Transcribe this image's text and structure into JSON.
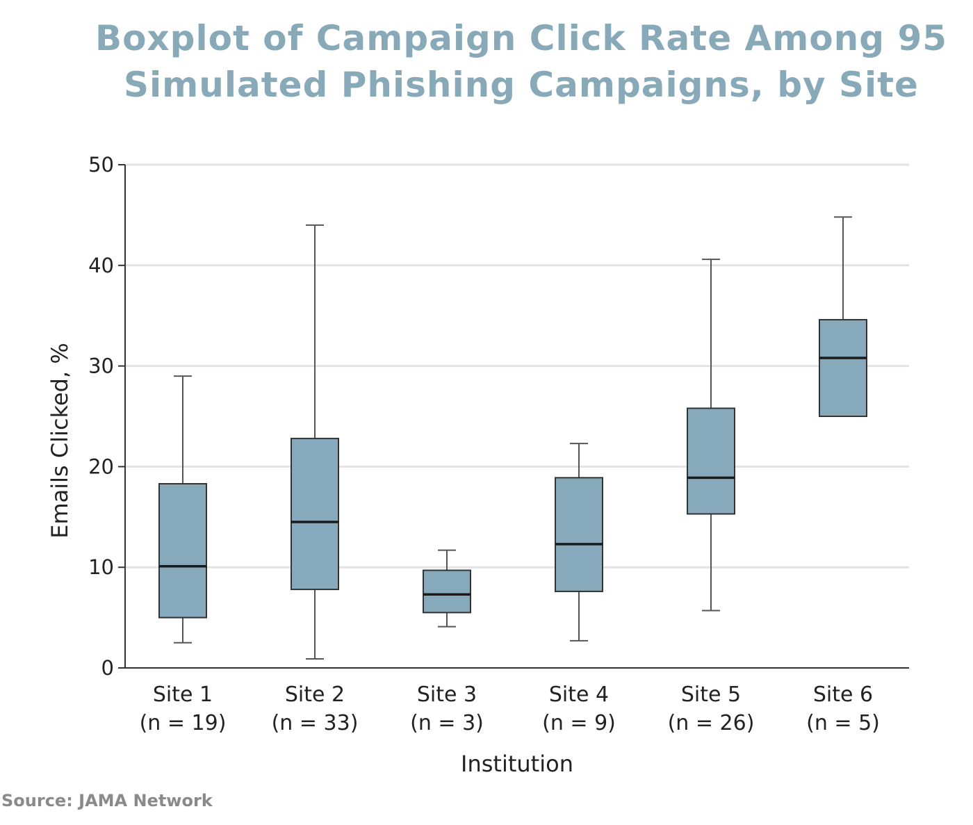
{
  "colors": {
    "title": "#88a9b8",
    "box_fill": "#86aabb",
    "box_stroke": "#333333",
    "grid": "#e3e3e3",
    "source": "#8a8a8a"
  },
  "chart_data": {
    "type": "boxplot",
    "title_lines": [
      "Boxplot of Campaign Click Rate Among 95",
      "Simulated Phishing Campaigns, by Site"
    ],
    "xlabel": "Institution",
    "ylabel": "Emails Clicked, %",
    "ylim": [
      0,
      50
    ],
    "yticks": [
      0,
      10,
      20,
      30,
      40,
      50
    ],
    "grid": true,
    "categories": [
      {
        "name": "Site 1",
        "n_label": "(n = 19)",
        "min": 2.5,
        "q1": 5.0,
        "median": 10.1,
        "q3": 18.3,
        "max": 29.0
      },
      {
        "name": "Site 2",
        "n_label": "(n = 33)",
        "min": 0.9,
        "q1": 7.8,
        "median": 14.5,
        "q3": 22.8,
        "max": 44.0
      },
      {
        "name": "Site 3",
        "n_label": "(n = 3)",
        "min": 4.1,
        "q1": 5.5,
        "median": 7.3,
        "q3": 9.7,
        "max": 11.7
      },
      {
        "name": "Site 4",
        "n_label": "(n = 9)",
        "min": 2.7,
        "q1": 7.6,
        "median": 12.3,
        "q3": 18.9,
        "max": 22.3
      },
      {
        "name": "Site 5",
        "n_label": "(n = 26)",
        "min": 5.7,
        "q1": 15.3,
        "median": 18.9,
        "q3": 25.8,
        "max": 40.6
      },
      {
        "name": "Site 6",
        "n_label": "(n = 5)",
        "min": 25.0,
        "q1": 25.0,
        "median": 30.8,
        "q3": 34.6,
        "max": 44.8
      }
    ]
  },
  "source": "Source: JAMA Network"
}
